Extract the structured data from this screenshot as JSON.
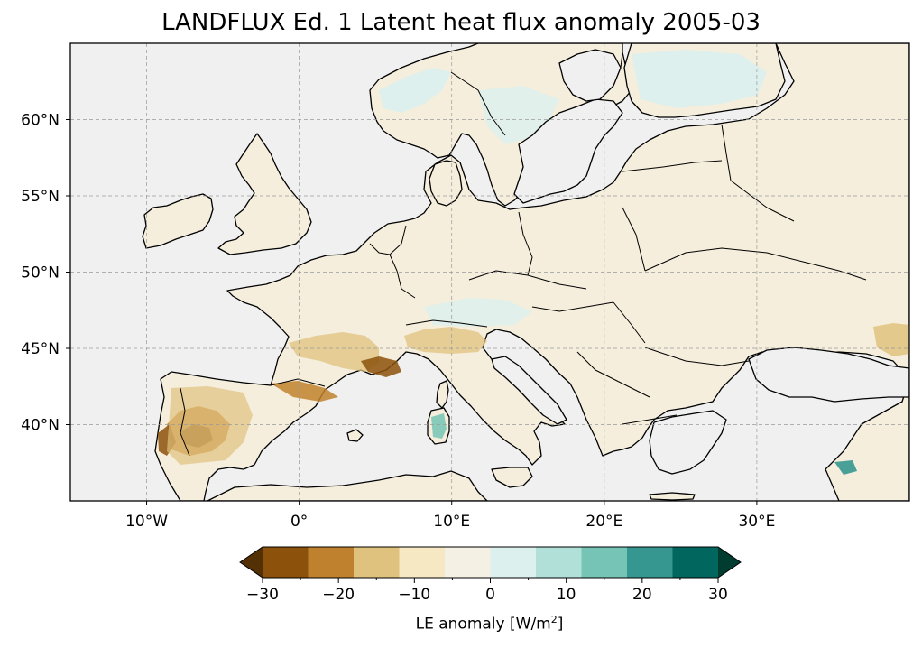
{
  "title": "LANDFLUX Ed. 1 Latent heat flux anomaly 2005-03",
  "map": {
    "lon_range": [
      -15,
      40
    ],
    "lat_range": [
      35,
      65
    ],
    "lon_ticks": [
      {
        "value": -10,
        "label": "10°W"
      },
      {
        "value": 0,
        "label": "0°"
      },
      {
        "value": 10,
        "label": "10°E"
      },
      {
        "value": 20,
        "label": "20°E"
      },
      {
        "value": 30,
        "label": "30°E"
      }
    ],
    "lat_ticks": [
      {
        "value": 40,
        "label": "40°N"
      },
      {
        "value": 45,
        "label": "45°N"
      },
      {
        "value": 50,
        "label": "50°N"
      },
      {
        "value": 55,
        "label": "55°N"
      },
      {
        "value": 60,
        "label": "60°N"
      }
    ],
    "ocean_color": "#f0f0f0",
    "land_color": "#f5eedc",
    "gridlines": true
  },
  "colorbar": {
    "label_prefix": "LE anomaly [W/m",
    "label_sup": "2",
    "label_suffix": "]",
    "colors": [
      "#543005",
      "#8c510a",
      "#bf812d",
      "#dfc27d",
      "#f6e8c3",
      "#f5f0e4",
      "#dcf0ee",
      "#b0e0d7",
      "#76c4b5",
      "#35978f",
      "#01665e",
      "#003c30"
    ],
    "tick_values": [
      -30,
      -20,
      -10,
      0,
      10,
      20,
      30
    ],
    "tick_labels": [
      "−30",
      "−20",
      "−10",
      "0",
      "10",
      "20",
      "30"
    ],
    "minor_tick_values": [
      -25,
      -15,
      -5,
      5,
      15,
      25
    ],
    "extend": "both"
  }
}
